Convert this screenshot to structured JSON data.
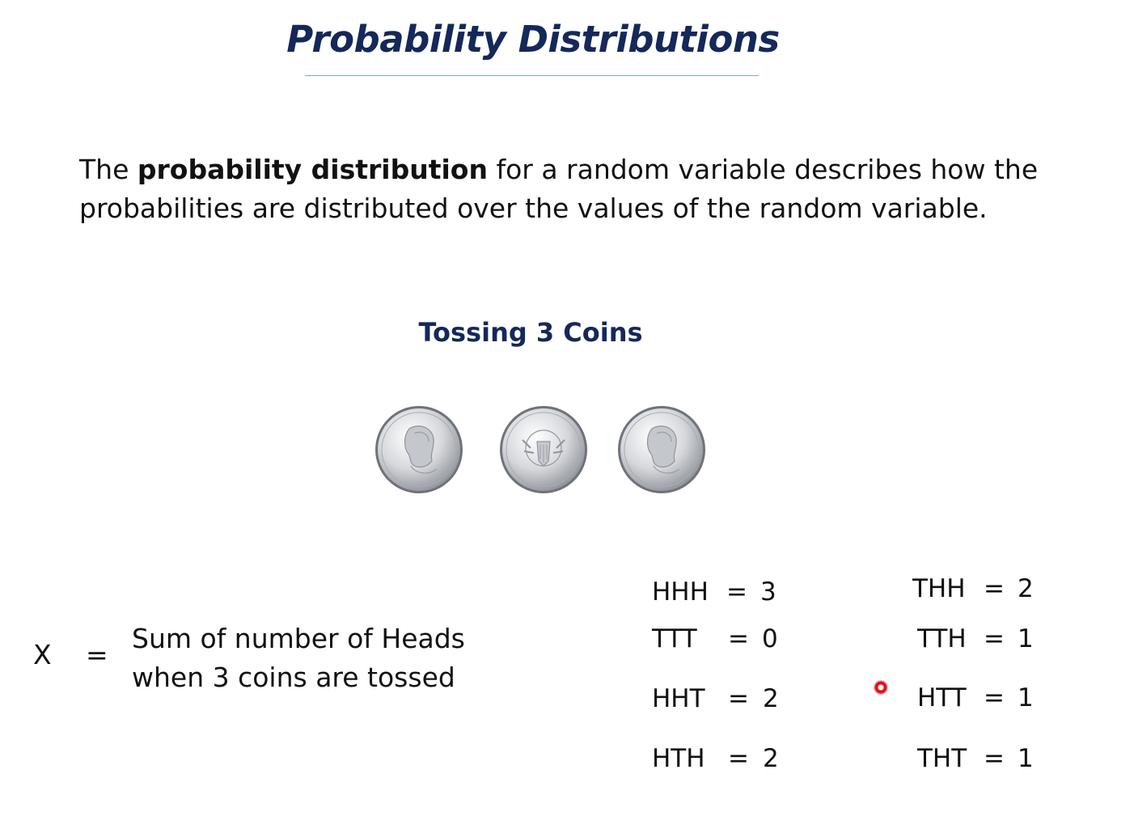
{
  "slide": {
    "title": "Probability Distributions",
    "definition": {
      "before": "The ",
      "term": "probability distribution",
      "after": " for a random variable describes how the probabilities are distributed over the values of the random variable."
    },
    "subtitle": "Tossing 3 Coins",
    "coins": [
      "kennedy-half-dollar-heads",
      "kennedy-half-dollar-tails",
      "kennedy-half-dollar-heads"
    ],
    "variable": {
      "symbol": "X",
      "equals": "=",
      "line1": "Sum of number of Heads",
      "line2": "when 3 coins are tossed"
    },
    "outcomes_left": [
      {
        "seq": "HHH",
        "eq": "=",
        "val": "3"
      },
      {
        "seq": "TTT",
        "eq": "=",
        "val": "0"
      },
      {
        "seq": "HHT",
        "eq": "=",
        "val": "2"
      },
      {
        "seq": "HTH",
        "eq": "=",
        "val": "2"
      }
    ],
    "outcomes_right": [
      {
        "seq": "THH",
        "eq": "=",
        "val": "2"
      },
      {
        "seq": "TTH",
        "eq": "=",
        "val": "1"
      },
      {
        "seq": "HTT",
        "eq": "=",
        "val": "1"
      },
      {
        "seq": "THT",
        "eq": "=",
        "val": "1"
      }
    ],
    "colors": {
      "heading": "#14285a",
      "text": "#111111",
      "rule": "#7fa8c2",
      "pointer": "#e0101a"
    }
  }
}
